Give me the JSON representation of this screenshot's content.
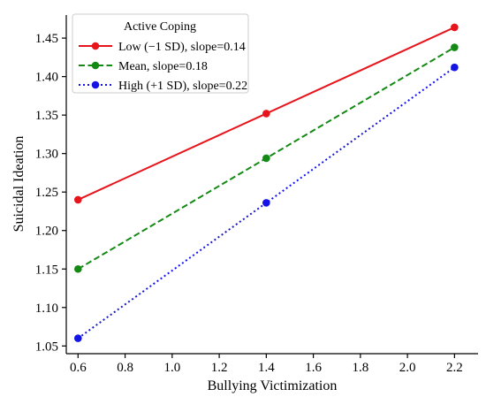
{
  "chart_data": {
    "type": "line",
    "xlabel": "Bullying Victimization",
    "ylabel": "Suicidal Ideation",
    "xlim": [
      0.55,
      2.3
    ],
    "ylim": [
      1.04,
      1.48
    ],
    "x_ticks": [
      "0.6",
      "0.8",
      "1.0",
      "1.2",
      "1.4",
      "1.6",
      "1.8",
      "2.0",
      "2.2"
    ],
    "y_ticks": [
      "1.05",
      "1.10",
      "1.15",
      "1.20",
      "1.25",
      "1.30",
      "1.35",
      "1.40",
      "1.45"
    ],
    "grid": false,
    "legend": {
      "title": "Active Coping",
      "placement": "top-left"
    },
    "x": [
      0.6,
      1.4,
      2.2
    ],
    "series": [
      {
        "name": "Low (−1 SD), slope=0.14",
        "values": [
          1.24,
          1.352,
          1.464
        ],
        "color": "#e8141c",
        "style": "solid"
      },
      {
        "name": "Mean, slope=0.18",
        "values": [
          1.15,
          1.294,
          1.438
        ],
        "color": "#138a13",
        "style": "dashed"
      },
      {
        "name": "High (+1 SD), slope=0.22",
        "values": [
          1.06,
          1.236,
          1.412
        ],
        "color": "#1414e6",
        "style": "dotted"
      }
    ]
  }
}
